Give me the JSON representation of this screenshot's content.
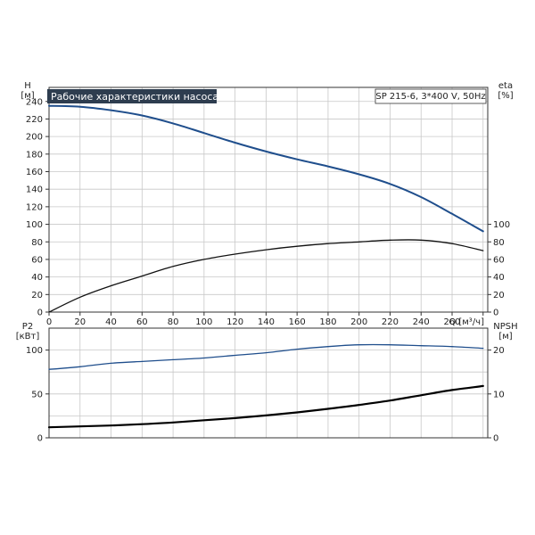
{
  "chart_data": [
    {
      "type": "line",
      "title": "Рабочие характеристики насоса",
      "model_label": "SP 215-6, 3*400 V, 50Hz",
      "colors": {
        "title_bg": "#2e3d4f",
        "title_fg": "#ffffff",
        "head": "#1f4e8c",
        "eta": "#111111"
      },
      "xlabel": "Q [м³/ч]",
      "xlim": [
        0,
        283
      ],
      "x_ticks": [
        0,
        20,
        40,
        60,
        80,
        100,
        120,
        140,
        160,
        180,
        200,
        220,
        240,
        260
      ],
      "y_left": {
        "label_top": "H",
        "label_unit": "[м]",
        "lim": [
          0,
          256
        ],
        "ticks": [
          0,
          20,
          40,
          60,
          80,
          100,
          120,
          140,
          160,
          180,
          200,
          220,
          240
        ]
      },
      "y_right": {
        "label_top": "eta",
        "label_unit": "[%]",
        "lim": [
          0,
          256
        ],
        "ticks": [
          0,
          20,
          40,
          60,
          80,
          100
        ]
      },
      "grid": true,
      "series": [
        {
          "axis": "left",
          "color": "#1f4e8c",
          "width": 2,
          "x": [
            0,
            20,
            40,
            60,
            80,
            100,
            120,
            140,
            160,
            180,
            200,
            220,
            240,
            260,
            280
          ],
          "y": [
            235,
            234,
            230,
            224,
            215,
            204,
            193,
            183,
            174,
            166,
            157,
            146,
            131,
            112,
            92
          ]
        },
        {
          "axis": "right",
          "color": "#111111",
          "width": 1.3,
          "x": [
            0,
            20,
            40,
            60,
            80,
            100,
            120,
            140,
            160,
            180,
            200,
            220,
            240,
            260,
            280
          ],
          "y": [
            0,
            17,
            30,
            41,
            52,
            60,
            66,
            71,
            75,
            78,
            80,
            82,
            82,
            78,
            70
          ]
        }
      ]
    },
    {
      "type": "line",
      "xlim": [
        0,
        283
      ],
      "y_left": {
        "label_top": "P2",
        "label_unit": "[кВт]",
        "lim": [
          0,
          125
        ],
        "ticks": [
          0,
          50,
          100
        ]
      },
      "y_right": {
        "label_top": "NPSH",
        "label_unit": "[м]",
        "lim": [
          0,
          25
        ],
        "ticks": [
          0,
          10,
          20
        ]
      },
      "grid": true,
      "series": [
        {
          "axis": "left",
          "color": "#1f4e8c",
          "width": 1.3,
          "x": [
            0,
            20,
            40,
            60,
            80,
            100,
            120,
            140,
            160,
            180,
            200,
            220,
            240,
            260,
            280
          ],
          "y": [
            78,
            81,
            85,
            87,
            89,
            91,
            94,
            97,
            101,
            104,
            106,
            106,
            105,
            104,
            102
          ]
        },
        {
          "axis": "right",
          "color": "#000000",
          "width": 2.2,
          "x": [
            0,
            20,
            40,
            60,
            80,
            100,
            120,
            140,
            160,
            180,
            200,
            220,
            240,
            260,
            280
          ],
          "y": [
            2.4,
            2.6,
            2.8,
            3.1,
            3.5,
            4.0,
            4.5,
            5.1,
            5.8,
            6.6,
            7.5,
            8.5,
            9.7,
            10.9,
            11.8
          ]
        }
      ]
    }
  ]
}
